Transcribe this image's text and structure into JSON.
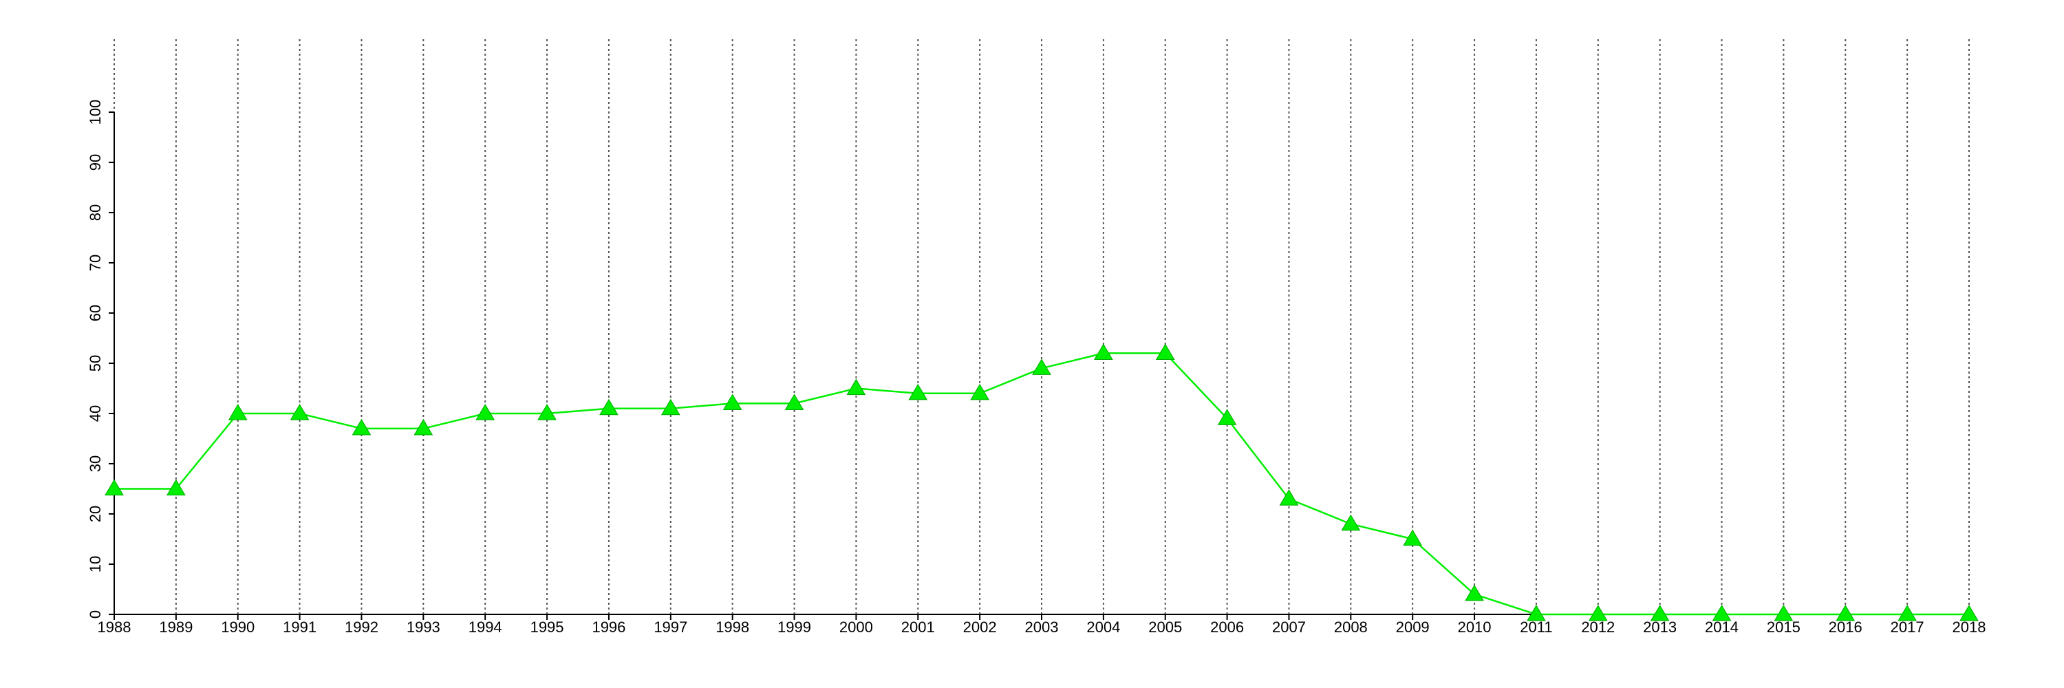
{
  "chart_data": {
    "type": "line",
    "x": [
      1988,
      1989,
      1990,
      1991,
      1992,
      1993,
      1994,
      1995,
      1996,
      1997,
      1998,
      1999,
      2000,
      2001,
      2002,
      2003,
      2004,
      2005,
      2006,
      2007,
      2008,
      2009,
      2010,
      2011,
      2012,
      2013,
      2014,
      2015,
      2016,
      2017,
      2018
    ],
    "series": [
      {
        "color": "#00ee00",
        "values": [
          25,
          25,
          40,
          40,
          37,
          37,
          40,
          40,
          41,
          41,
          42,
          42,
          45,
          44,
          44,
          49,
          52,
          52,
          39,
          23,
          18,
          15,
          4,
          0,
          0,
          0,
          0,
          0,
          0,
          0,
          0
        ]
      }
    ],
    "xlim": [
      1988,
      2018
    ],
    "xticks": [
      1988,
      1989,
      1990,
      1991,
      1992,
      1993,
      1994,
      1995,
      1996,
      1997,
      1998,
      1999,
      2000,
      2001,
      2002,
      2003,
      2004,
      2005,
      2006,
      2007,
      2008,
      2009,
      2010,
      2011,
      2012,
      2013,
      2014,
      2015,
      2016,
      2017,
      2018
    ],
    "ylim": [
      0,
      100
    ],
    "yticks": [
      0,
      10,
      20,
      30,
      40,
      50,
      60,
      70,
      80,
      90,
      100
    ],
    "grid": true,
    "marker": "triangle"
  }
}
